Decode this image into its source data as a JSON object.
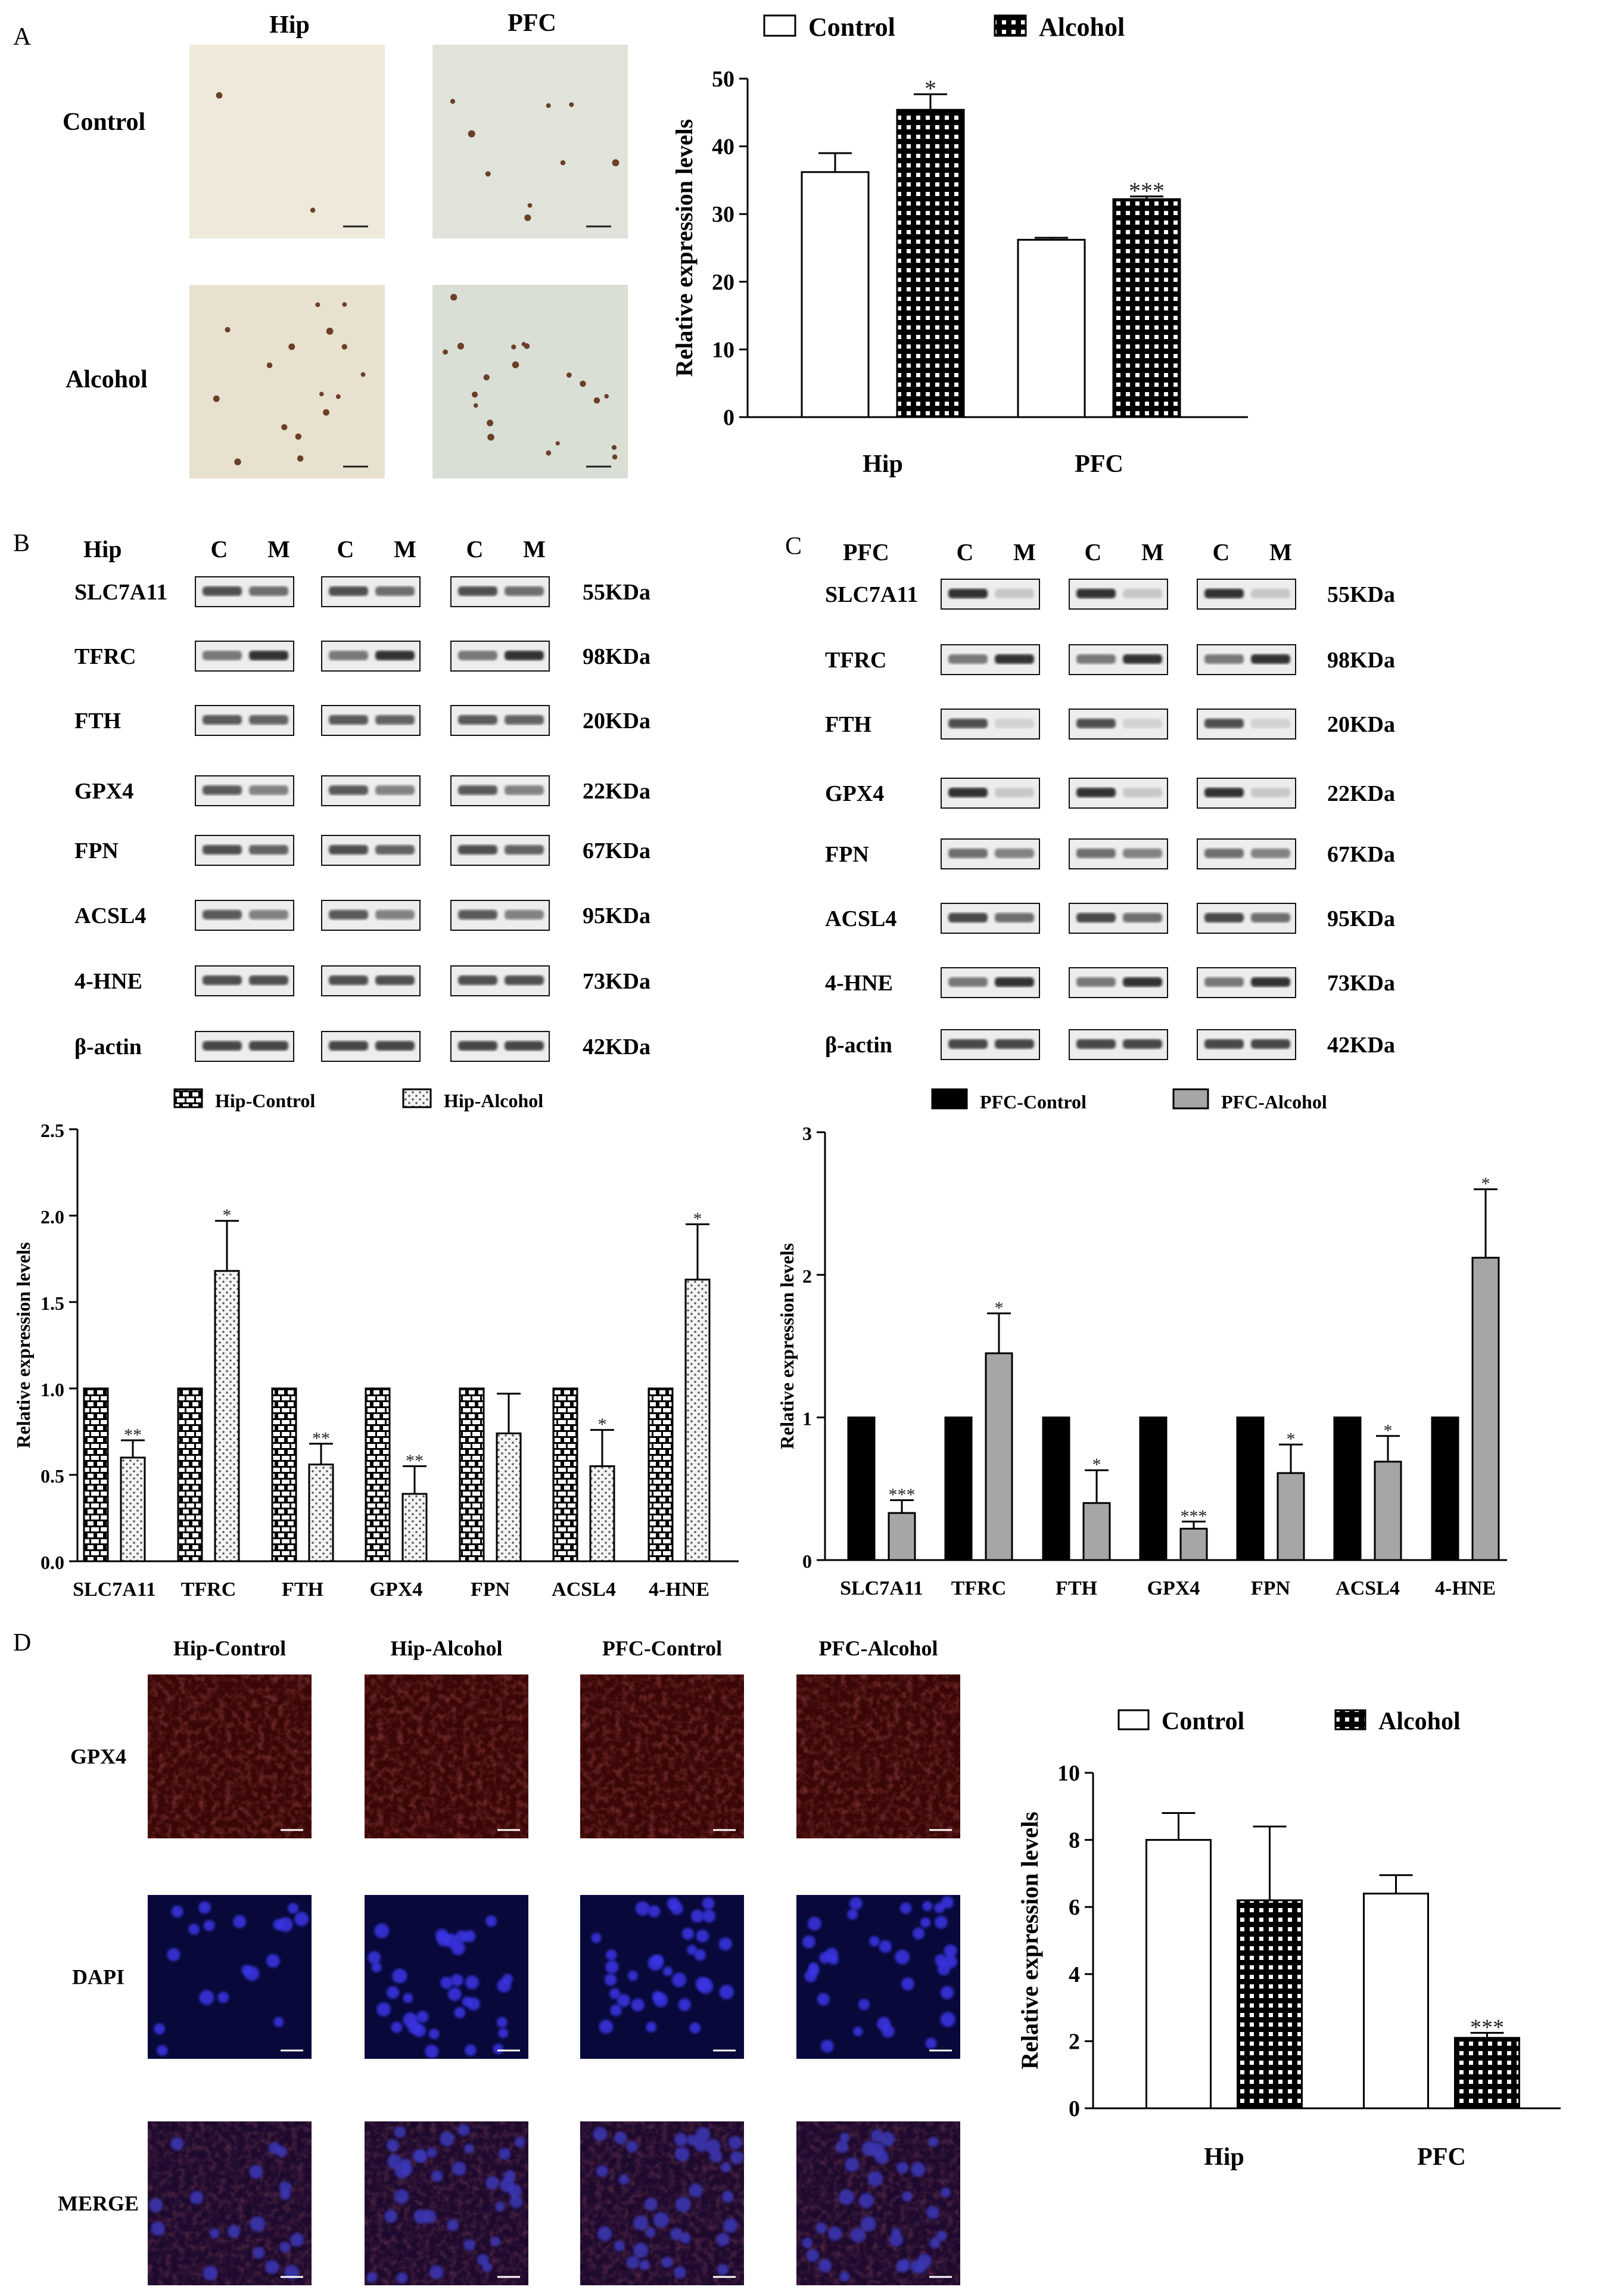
{
  "panels": {
    "A": "A",
    "B": "B",
    "C": "C",
    "D": "D"
  },
  "colors": {
    "ink": "#000000",
    "grey_bar": "#a6a6a6",
    "black_bar": "#000000",
    "ihc_bg": "#ece6d6",
    "fluor_red": "#3a0606",
    "fluor_blue": "#08093a"
  },
  "panel_a": {
    "col_labels": [
      "Hip",
      "PFC"
    ],
    "row_labels": [
      "Control",
      "Alcohol"
    ]
  },
  "western_b": {
    "region": "Hip",
    "lane_labels": [
      "C",
      "M"
    ],
    "proteins": [
      "SLC7A11",
      "TFRC",
      "FTH",
      "GPX4",
      "FPN",
      "ACSL4",
      "4-HNE",
      "β-actin"
    ],
    "sizes": [
      "55KDa",
      "98KDa",
      "20KDa",
      "22KDa",
      "67KDa",
      "95KDa",
      "73KDa",
      "42KDa"
    ]
  },
  "western_c": {
    "region": "PFC",
    "lane_labels": [
      "C",
      "M"
    ],
    "proteins": [
      "SLC7A11",
      "TFRC",
      "FTH",
      "GPX4",
      "FPN",
      "ACSL4",
      "4-HNE",
      "β-actin"
    ],
    "sizes": [
      "55KDa",
      "98KDa",
      "20KDa",
      "22KDa",
      "67KDa",
      "95KDa",
      "73KDa",
      "42KDa"
    ]
  },
  "panel_d": {
    "col_labels": [
      "Hip-Control",
      "Hip-Alcohol",
      "PFC-Control",
      "PFC-Alcohol"
    ],
    "row_labels": [
      "GPX4",
      "DAPI",
      "MERGE"
    ]
  },
  "chart_data": [
    {
      "id": "chartA",
      "type": "bar",
      "categories": [
        "Hip",
        "PFC"
      ],
      "series": [
        {
          "name": "Control",
          "values": [
            36.2,
            26.2
          ],
          "errors": [
            2.8,
            0.3
          ],
          "sig": [
            "",
            ""
          ],
          "pattern": "white"
        },
        {
          "name": "Alcohol",
          "values": [
            45.4,
            32.2
          ],
          "errors": [
            2.3,
            0.4
          ],
          "sig": [
            "*",
            "***"
          ],
          "pattern": "grid"
        }
      ],
      "ylabel": "Relative expression levels",
      "ylim": [
        0,
        50
      ],
      "yticks": [
        "0",
        "10",
        "20",
        "30",
        "40",
        "50"
      ],
      "legend": "top"
    },
    {
      "id": "chartB",
      "type": "bar",
      "categories": [
        "SLC7A11",
        "TFRC",
        "FTH",
        "GPX4",
        "FPN",
        "ACSL4",
        "4-HNE"
      ],
      "series": [
        {
          "name": "Hip-Control",
          "values": [
            1,
            1,
            1,
            1,
            1,
            1,
            1
          ],
          "errors": [
            0,
            0,
            0,
            0,
            0,
            0,
            0
          ],
          "sig": [
            "",
            "",
            "",
            "",
            "",
            "",
            ""
          ],
          "pattern": "brick"
        },
        {
          "name": "Hip-Alcohol",
          "values": [
            0.6,
            1.68,
            0.56,
            0.39,
            0.74,
            0.55,
            1.63
          ],
          "errors": [
            0.1,
            0.29,
            0.12,
            0.16,
            0.23,
            0.21,
            0.32
          ],
          "sig": [
            "**",
            "*",
            "**",
            "**",
            "",
            "*",
            "*"
          ],
          "pattern": "dots"
        }
      ],
      "ylabel": "Relative expression levels",
      "ylim": [
        0,
        2.5
      ],
      "yticks": [
        "0.0",
        "0.5",
        "1.0",
        "1.5",
        "2.0",
        "2.5"
      ],
      "legend": "top"
    },
    {
      "id": "chartC",
      "type": "bar",
      "categories": [
        "SLC7A11",
        "TFRC",
        "FTH",
        "GPX4",
        "FPN",
        "ACSL4",
        "4-HNE"
      ],
      "series": [
        {
          "name": "PFC-Control",
          "values": [
            1,
            1,
            1,
            1,
            1,
            1,
            1
          ],
          "errors": [
            0,
            0,
            0,
            0,
            0,
            0,
            0
          ],
          "sig": [
            "",
            "",
            "",
            "",
            "",
            "",
            ""
          ],
          "pattern": "black"
        },
        {
          "name": "PFC-Alcohol",
          "values": [
            0.33,
            1.45,
            0.4,
            0.22,
            0.61,
            0.69,
            2.12
          ],
          "errors": [
            0.09,
            0.28,
            0.23,
            0.05,
            0.2,
            0.18,
            0.48
          ],
          "sig": [
            "***",
            "*",
            "*",
            "***",
            "*",
            "*",
            "*"
          ],
          "pattern": "grey"
        }
      ],
      "ylabel": "Relative expression levels",
      "ylim": [
        0,
        3
      ],
      "yticks": [
        "0",
        "1",
        "2",
        "3"
      ],
      "legend": "top"
    },
    {
      "id": "chartD",
      "type": "bar",
      "categories": [
        "Hip",
        "PFC"
      ],
      "series": [
        {
          "name": "Control",
          "values": [
            8.0,
            6.4
          ],
          "errors": [
            0.8,
            0.55
          ],
          "sig": [
            "",
            ""
          ],
          "pattern": "white"
        },
        {
          "name": "Alcohol",
          "values": [
            6.2,
            2.1
          ],
          "errors": [
            2.2,
            0.15
          ],
          "sig": [
            "",
            "***"
          ],
          "pattern": "grid"
        }
      ],
      "ylabel": "Relative expression levels",
      "ylim": [
        0,
        10
      ],
      "yticks": [
        "0",
        "2",
        "4",
        "6",
        "8",
        "10"
      ],
      "legend": "top"
    }
  ]
}
